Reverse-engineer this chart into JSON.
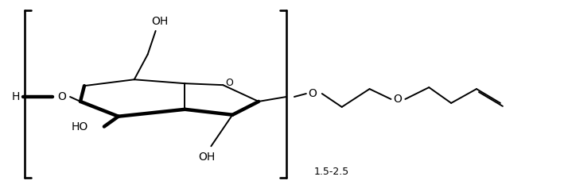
{
  "figsize": [
    7.09,
    2.42
  ],
  "dpi": 100,
  "bg_color": "#ffffff",
  "line_color": "#000000",
  "lw": 1.4,
  "blw": 3.2,
  "fs": 10,
  "xlim": [
    0,
    709
  ],
  "ylim": [
    0,
    242
  ]
}
